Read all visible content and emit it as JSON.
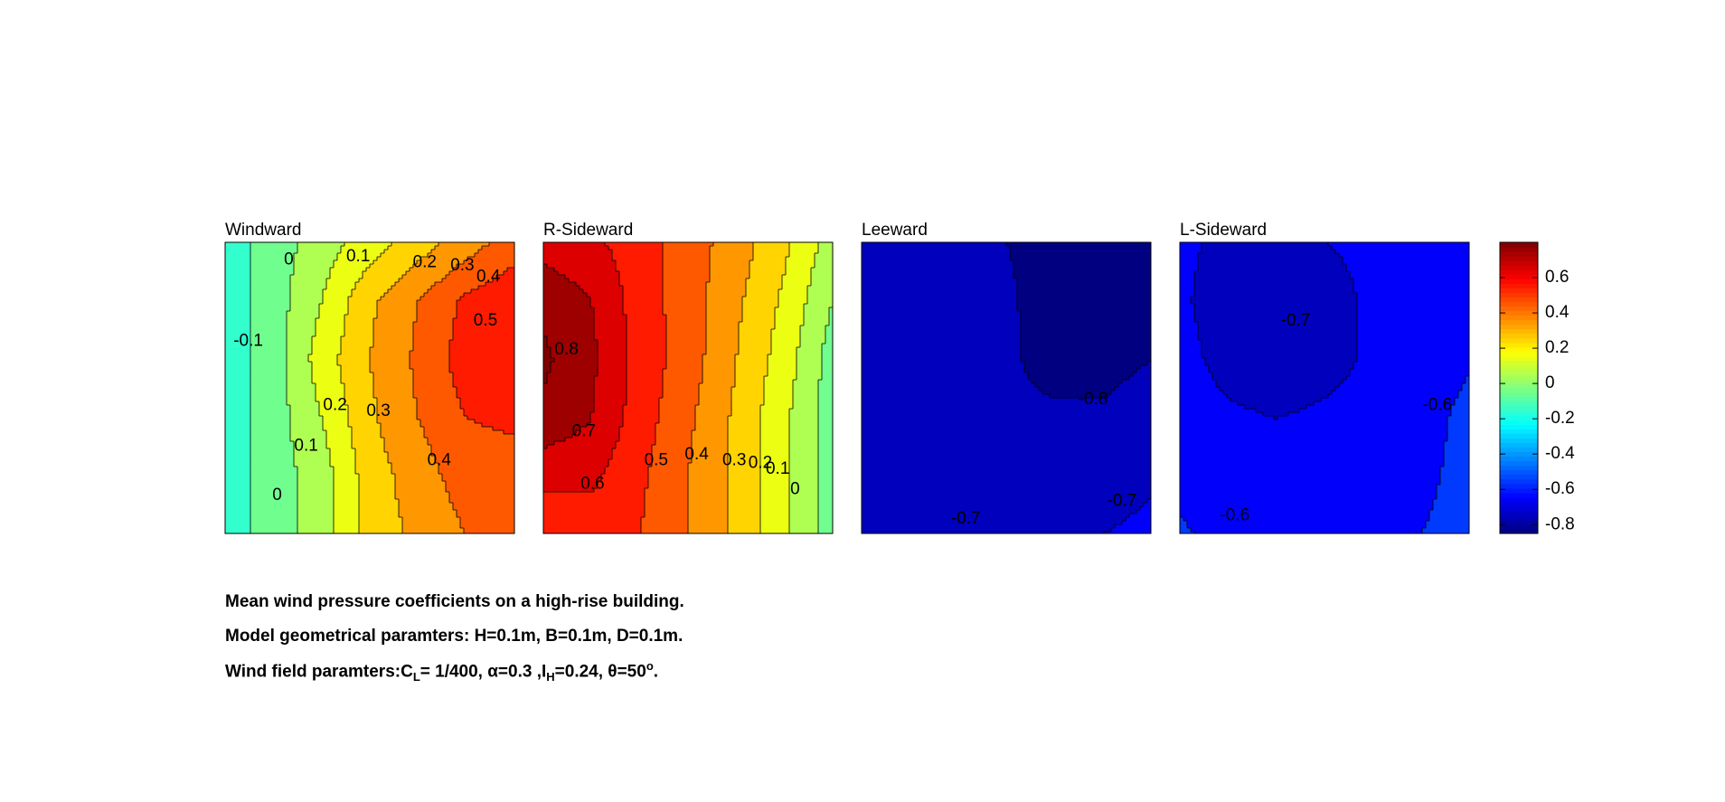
{
  "chart_data": {
    "type": "heatmap",
    "subtype": "filled-contour",
    "colormap": "jet",
    "clim": [
      -0.85,
      0.8
    ],
    "colorbar": {
      "ticks": [
        -0.8,
        -0.6,
        -0.4,
        -0.2,
        0,
        0.2,
        0.4,
        0.6
      ],
      "tick_labels": [
        "-0.8",
        "-0.6",
        "-0.4",
        "-0.2",
        "0",
        "0.2",
        "0.4",
        "0.6"
      ],
      "placement": "right"
    },
    "panels": [
      {
        "title": "Windward",
        "grid": [
          [
            -0.15,
            -0.05,
            0.05,
            0.15,
            0.25,
            0.35,
            0.45
          ],
          [
            -0.15,
            -0.05,
            0.1,
            0.28,
            0.4,
            0.52,
            0.58
          ],
          [
            -0.15,
            -0.05,
            0.15,
            0.3,
            0.42,
            0.55,
            0.58
          ],
          [
            -0.15,
            -0.05,
            0.1,
            0.28,
            0.4,
            0.5,
            0.52
          ],
          [
            -0.15,
            -0.05,
            0.05,
            0.25,
            0.35,
            0.45,
            0.45
          ],
          [
            -0.15,
            -0.05,
            0.05,
            0.25,
            0.32,
            0.4,
            0.4
          ]
        ],
        "contour_labels": [
          {
            "text": "0",
            "u": 0.22,
            "v": 0.06
          },
          {
            "text": "0.1",
            "u": 0.46,
            "v": 0.05
          },
          {
            "text": "0.2",
            "u": 0.69,
            "v": 0.07
          },
          {
            "text": "0.3",
            "u": 0.82,
            "v": 0.08
          },
          {
            "text": "0.4",
            "u": 0.91,
            "v": 0.12
          },
          {
            "text": "0.5",
            "u": 0.9,
            "v": 0.27
          },
          {
            "text": "-0.1",
            "u": 0.08,
            "v": 0.34
          },
          {
            "text": "0.2",
            "u": 0.38,
            "v": 0.56
          },
          {
            "text": "0.3",
            "u": 0.53,
            "v": 0.58
          },
          {
            "text": "0.1",
            "u": 0.28,
            "v": 0.7
          },
          {
            "text": "0.4",
            "u": 0.74,
            "v": 0.75
          },
          {
            "text": "0",
            "u": 0.18,
            "v": 0.87
          }
        ]
      },
      {
        "title": "R-Sideward",
        "grid": [
          [
            0.65,
            0.62,
            0.55,
            0.45,
            0.35,
            0.22,
            0.05
          ],
          [
            0.78,
            0.7,
            0.55,
            0.45,
            0.32,
            0.18,
            0.0
          ],
          [
            0.82,
            0.72,
            0.56,
            0.45,
            0.3,
            0.15,
            -0.05
          ],
          [
            0.78,
            0.7,
            0.55,
            0.42,
            0.28,
            0.12,
            -0.05
          ],
          [
            0.62,
            0.62,
            0.52,
            0.4,
            0.28,
            0.12,
            -0.05
          ],
          [
            0.55,
            0.55,
            0.5,
            0.4,
            0.28,
            0.12,
            -0.05
          ]
        ],
        "contour_labels": [
          {
            "text": "0.8",
            "u": 0.08,
            "v": 0.37
          },
          {
            "text": "0.7",
            "u": 0.14,
            "v": 0.65
          },
          {
            "text": "0.6",
            "u": 0.17,
            "v": 0.83
          },
          {
            "text": "0.5",
            "u": 0.39,
            "v": 0.75
          },
          {
            "text": "0.4",
            "u": 0.53,
            "v": 0.73
          },
          {
            "text": "0.3",
            "u": 0.66,
            "v": 0.75
          },
          {
            "text": "0.2",
            "u": 0.75,
            "v": 0.76
          },
          {
            "text": "0.1",
            "u": 0.81,
            "v": 0.78
          },
          {
            "text": "0",
            "u": 0.87,
            "v": 0.85
          }
        ]
      },
      {
        "title": "Leeward",
        "grid": [
          [
            -0.76,
            -0.78,
            -0.79,
            -0.8,
            -0.82,
            -0.83,
            -0.83
          ],
          [
            -0.71,
            -0.77,
            -0.78,
            -0.79,
            -0.83,
            -0.84,
            -0.84
          ],
          [
            -0.71,
            -0.76,
            -0.78,
            -0.79,
            -0.82,
            -0.82,
            -0.8
          ],
          [
            -0.71,
            -0.75,
            -0.78,
            -0.79,
            -0.79,
            -0.79,
            -0.77
          ],
          [
            -0.71,
            -0.73,
            -0.77,
            -0.78,
            -0.77,
            -0.74,
            -0.71
          ],
          [
            -0.71,
            -0.72,
            -0.75,
            -0.77,
            -0.74,
            -0.7,
            -0.68
          ]
        ],
        "contour_labels": [
          {
            "text": "-0.8",
            "u": 0.8,
            "v": 0.54
          },
          {
            "text": "-0.7",
            "u": 0.36,
            "v": 0.95
          },
          {
            "text": "-0.7",
            "u": 0.9,
            "v": 0.89
          }
        ]
      },
      {
        "title": "L-Sideward",
        "grid": [
          [
            -0.69,
            -0.71,
            -0.71,
            -0.7,
            -0.69,
            -0.68,
            -0.67
          ],
          [
            -0.69,
            -0.73,
            -0.74,
            -0.72,
            -0.69,
            -0.67,
            -0.64
          ],
          [
            -0.68,
            -0.72,
            -0.74,
            -0.72,
            -0.69,
            -0.66,
            -0.61
          ],
          [
            -0.67,
            -0.69,
            -0.7,
            -0.69,
            -0.68,
            -0.64,
            -0.57
          ],
          [
            -0.64,
            -0.67,
            -0.68,
            -0.68,
            -0.67,
            -0.62,
            -0.57
          ],
          [
            -0.58,
            -0.65,
            -0.67,
            -0.67,
            -0.66,
            -0.6,
            -0.57
          ]
        ],
        "contour_labels": [
          {
            "text": "-0.7",
            "u": 0.4,
            "v": 0.27
          },
          {
            "text": "-0.6",
            "u": 0.89,
            "v": 0.56
          },
          {
            "text": "-0.6",
            "u": 0.19,
            "v": 0.94
          }
        ]
      }
    ]
  },
  "captions": {
    "line1": "Mean wind pressure coefficients on a high-rise building.",
    "line2": "Model geometrical paramters: H=0.1m, B=0.1m, D=0.1m.",
    "line3": {
      "prefix": "Wind field paramters:C",
      "cl_sub": "L",
      "mid": "= 1/400, α=0.3 ,I",
      "ih_sub": "H",
      "rest": "=0.24, θ=50",
      "deg_sup": "o",
      "end": "."
    }
  }
}
